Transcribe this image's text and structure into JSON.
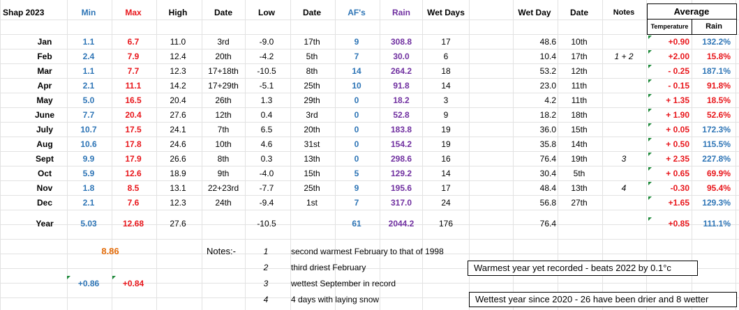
{
  "sheet": {
    "title": "Shap 2023",
    "headers": {
      "min": "Min",
      "max": "Max",
      "high": "High",
      "high_date": "Date",
      "low": "Low",
      "low_date": "Date",
      "afs": "AF's",
      "rain": "Rain",
      "wet_days": "Wet Days",
      "wet_day": "Wet Day",
      "wet_day_date": "Date",
      "notes": "Notes",
      "average": "Average",
      "temperature": "Temperature",
      "avg_rain": "Rain"
    },
    "months": [
      {
        "month": "Jan",
        "min": "1.1",
        "max": "6.7",
        "high": "11.0",
        "high_date": "3rd",
        "low": "-9.0",
        "low_date": "17th",
        "afs": "9",
        "rain": "308.8",
        "wet_days": "17",
        "wet_day": "48.6",
        "wet_day_date": "10th",
        "note": "",
        "temp_avg": "+0.90",
        "rain_avg": "132.2%"
      },
      {
        "month": "Feb",
        "min": "2.4",
        "max": "7.9",
        "high": "12.4",
        "high_date": "20th",
        "low": "-4.2",
        "low_date": "5th",
        "afs": "7",
        "rain": "30.0",
        "wet_days": "6",
        "wet_day": "10.4",
        "wet_day_date": "17th",
        "note": "1 + 2",
        "temp_avg": "+2.00",
        "rain_avg": "15.8%"
      },
      {
        "month": "Mar",
        "min": "1.1",
        "max": "7.7",
        "high": "12.3",
        "high_date": "17+18th",
        "low": "-10.5",
        "low_date": "8th",
        "afs": "14",
        "rain": "264.2",
        "wet_days": "18",
        "wet_day": "53.2",
        "wet_day_date": "12th",
        "note": "",
        "temp_avg": "- 0.25",
        "rain_avg": "187.1%"
      },
      {
        "month": "Apr",
        "min": "2.1",
        "max": "11.1",
        "high": "14.2",
        "high_date": "17+29th",
        "low": "-5.1",
        "low_date": "25th",
        "afs": "10",
        "rain": "91.8",
        "wet_days": "14",
        "wet_day": "23.0",
        "wet_day_date": "11th",
        "note": "",
        "temp_avg": "- 0.15",
        "rain_avg": "91.8%"
      },
      {
        "month": "May",
        "min": "5.0",
        "max": "16.5",
        "high": "20.4",
        "high_date": "26th",
        "low": "1.3",
        "low_date": "29th",
        "afs": "0",
        "rain": "18.2",
        "wet_days": "3",
        "wet_day": "4.2",
        "wet_day_date": "11th",
        "note": "",
        "temp_avg": "+ 1.35",
        "rain_avg": "18.5%"
      },
      {
        "month": "June",
        "min": "7.7",
        "max": "20.4",
        "high": "27.6",
        "high_date": "12th",
        "low": "0.4",
        "low_date": "3rd",
        "afs": "0",
        "rain": "52.8",
        "wet_days": "9",
        "wet_day": "18.2",
        "wet_day_date": "18th",
        "note": "",
        "temp_avg": "+ 1.90",
        "rain_avg": "52.6%"
      },
      {
        "month": "July",
        "min": "10.7",
        "max": "17.5",
        "high": "24.1",
        "high_date": "7th",
        "low": "6.5",
        "low_date": "20th",
        "afs": "0",
        "rain": "183.8",
        "wet_days": "19",
        "wet_day": "36.0",
        "wet_day_date": "15th",
        "note": "",
        "temp_avg": "+ 0.05",
        "rain_avg": "172.3%"
      },
      {
        "month": "Aug",
        "min": "10.6",
        "max": "17.8",
        "high": "24.6",
        "high_date": "10th",
        "low": "4.6",
        "low_date": "31st",
        "afs": "0",
        "rain": "154.2",
        "wet_days": "19",
        "wet_day": "35.8",
        "wet_day_date": "14th",
        "note": "",
        "temp_avg": "+ 0.50",
        "rain_avg": "115.5%"
      },
      {
        "month": "Sept",
        "min": "9.9",
        "max": "17.9",
        "high": "26.6",
        "high_date": "8th",
        "low": "0.3",
        "low_date": "13th",
        "afs": "0",
        "rain": "298.6",
        "wet_days": "16",
        "wet_day": "76.4",
        "wet_day_date": "19th",
        "note": "3",
        "temp_avg": "+ 2.35",
        "rain_avg": "227.8%"
      },
      {
        "month": "Oct",
        "min": "5.9",
        "max": "12.6",
        "high": "18.9",
        "high_date": "9th",
        "low": "-4.0",
        "low_date": "15th",
        "afs": "5",
        "rain": "129.2",
        "wet_days": "14",
        "wet_day": "30.4",
        "wet_day_date": "5th",
        "note": "",
        "temp_avg": "+ 0.65",
        "rain_avg": "69.9%"
      },
      {
        "month": "Nov",
        "min": "1.8",
        "max": "8.5",
        "high": "13.1",
        "high_date": "22+23rd",
        "low": "-7.7",
        "low_date": "25th",
        "afs": "9",
        "rain": "195.6",
        "wet_days": "17",
        "wet_day": "48.4",
        "wet_day_date": "13th",
        "note": "4",
        "temp_avg": "-0.30",
        "rain_avg": "95.4%"
      },
      {
        "month": "Dec",
        "min": "2.1",
        "max": "7.6",
        "high": "12.3",
        "high_date": "24th",
        "low": "-9.4",
        "low_date": "1st",
        "afs": "7",
        "rain": "317.0",
        "wet_days": "24",
        "wet_day": "56.8",
        "wet_day_date": "27th",
        "note": "",
        "temp_avg": "+1.65",
        "rain_avg": "129.3%"
      }
    ],
    "year": {
      "label": "Year",
      "min": "5.03",
      "max": "12.68",
      "high": "27.6",
      "low": "-10.5",
      "afs": "61",
      "rain": "2044.2",
      "wet_days": "176",
      "wet_day": "76.4",
      "temp_avg": "+0.85",
      "rain_avg": "111.1%"
    },
    "summary": {
      "mean_temp": "8.86",
      "min_anomaly": "+0.86",
      "max_anomaly": "+0.84"
    },
    "notes": {
      "label": "Notes:-",
      "items": [
        {
          "num": "1",
          "text": "second warmest February to that of 1998"
        },
        {
          "num": "2",
          "text": "third driest February"
        },
        {
          "num": "3",
          "text": "wettest September in record"
        },
        {
          "num": "4",
          "text": "4 days with laying snow"
        }
      ]
    },
    "callouts": {
      "warmest": "Warmest year yet recorded - beats 2022 by 0.1°c",
      "wettest": "Wettest year since 2020  - 26 have been drier and 8 wetter"
    },
    "colors": {
      "min": "#2e75b6",
      "max": "#e8161b",
      "rain": "#7030a0",
      "mean_temp": "#e36c0a",
      "gridline": "#e2e2e2",
      "indicator": "#1e8a3a"
    }
  }
}
